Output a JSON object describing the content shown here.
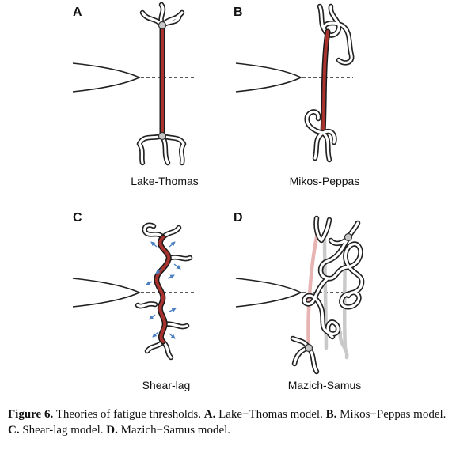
{
  "panels": [
    {
      "letter": "A",
      "label": "Lake-Thomas"
    },
    {
      "letter": "B",
      "label": "Mikos-Peppas"
    },
    {
      "letter": "C",
      "label": "Shear-lag"
    },
    {
      "letter": "D",
      "label": "Mazich-Samus"
    }
  ],
  "caption": {
    "figure_label": "Figure 6.",
    "text_1": " Theories of fatigue thresholds. ",
    "a_label": "A.",
    "a_text": " Lake−Thomas model. ",
    "b_label": "B.",
    "b_text": " Mikos−Peppas model. ",
    "c_label": "C.",
    "c_text": " Shear-lag model. ",
    "d_label": "D.",
    "d_text": " Mazich−Samus model."
  },
  "colors": {
    "bridge": "#a8322d",
    "arrow": "#4a7fc1",
    "rule": "#2a5aa0"
  }
}
